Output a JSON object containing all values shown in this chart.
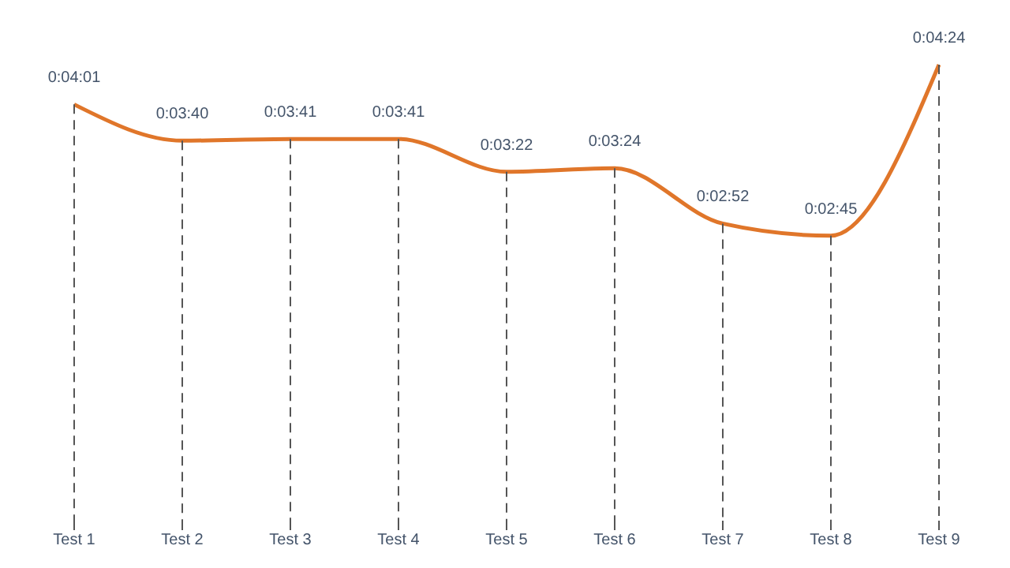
{
  "chart_data": {
    "type": "line",
    "categories": [
      "Test 1",
      "Test 2",
      "Test 3",
      "Test 4",
      "Test 5",
      "Test 6",
      "Test 7",
      "Test 8",
      "Test 9"
    ],
    "series": [
      {
        "color": "#e0762a",
        "values": [
          241,
          220,
          221,
          221,
          202,
          204,
          172,
          165,
          264
        ],
        "value_labels": [
          "0:04:01",
          "0:03:40",
          "0:03:41",
          "0:03:41",
          "0:03:22",
          "0:03:24",
          "0:02:52",
          "0:02:45",
          "0:04:24"
        ]
      }
    ],
    "grid": "x",
    "marker": "none",
    "line_style": "solid"
  }
}
